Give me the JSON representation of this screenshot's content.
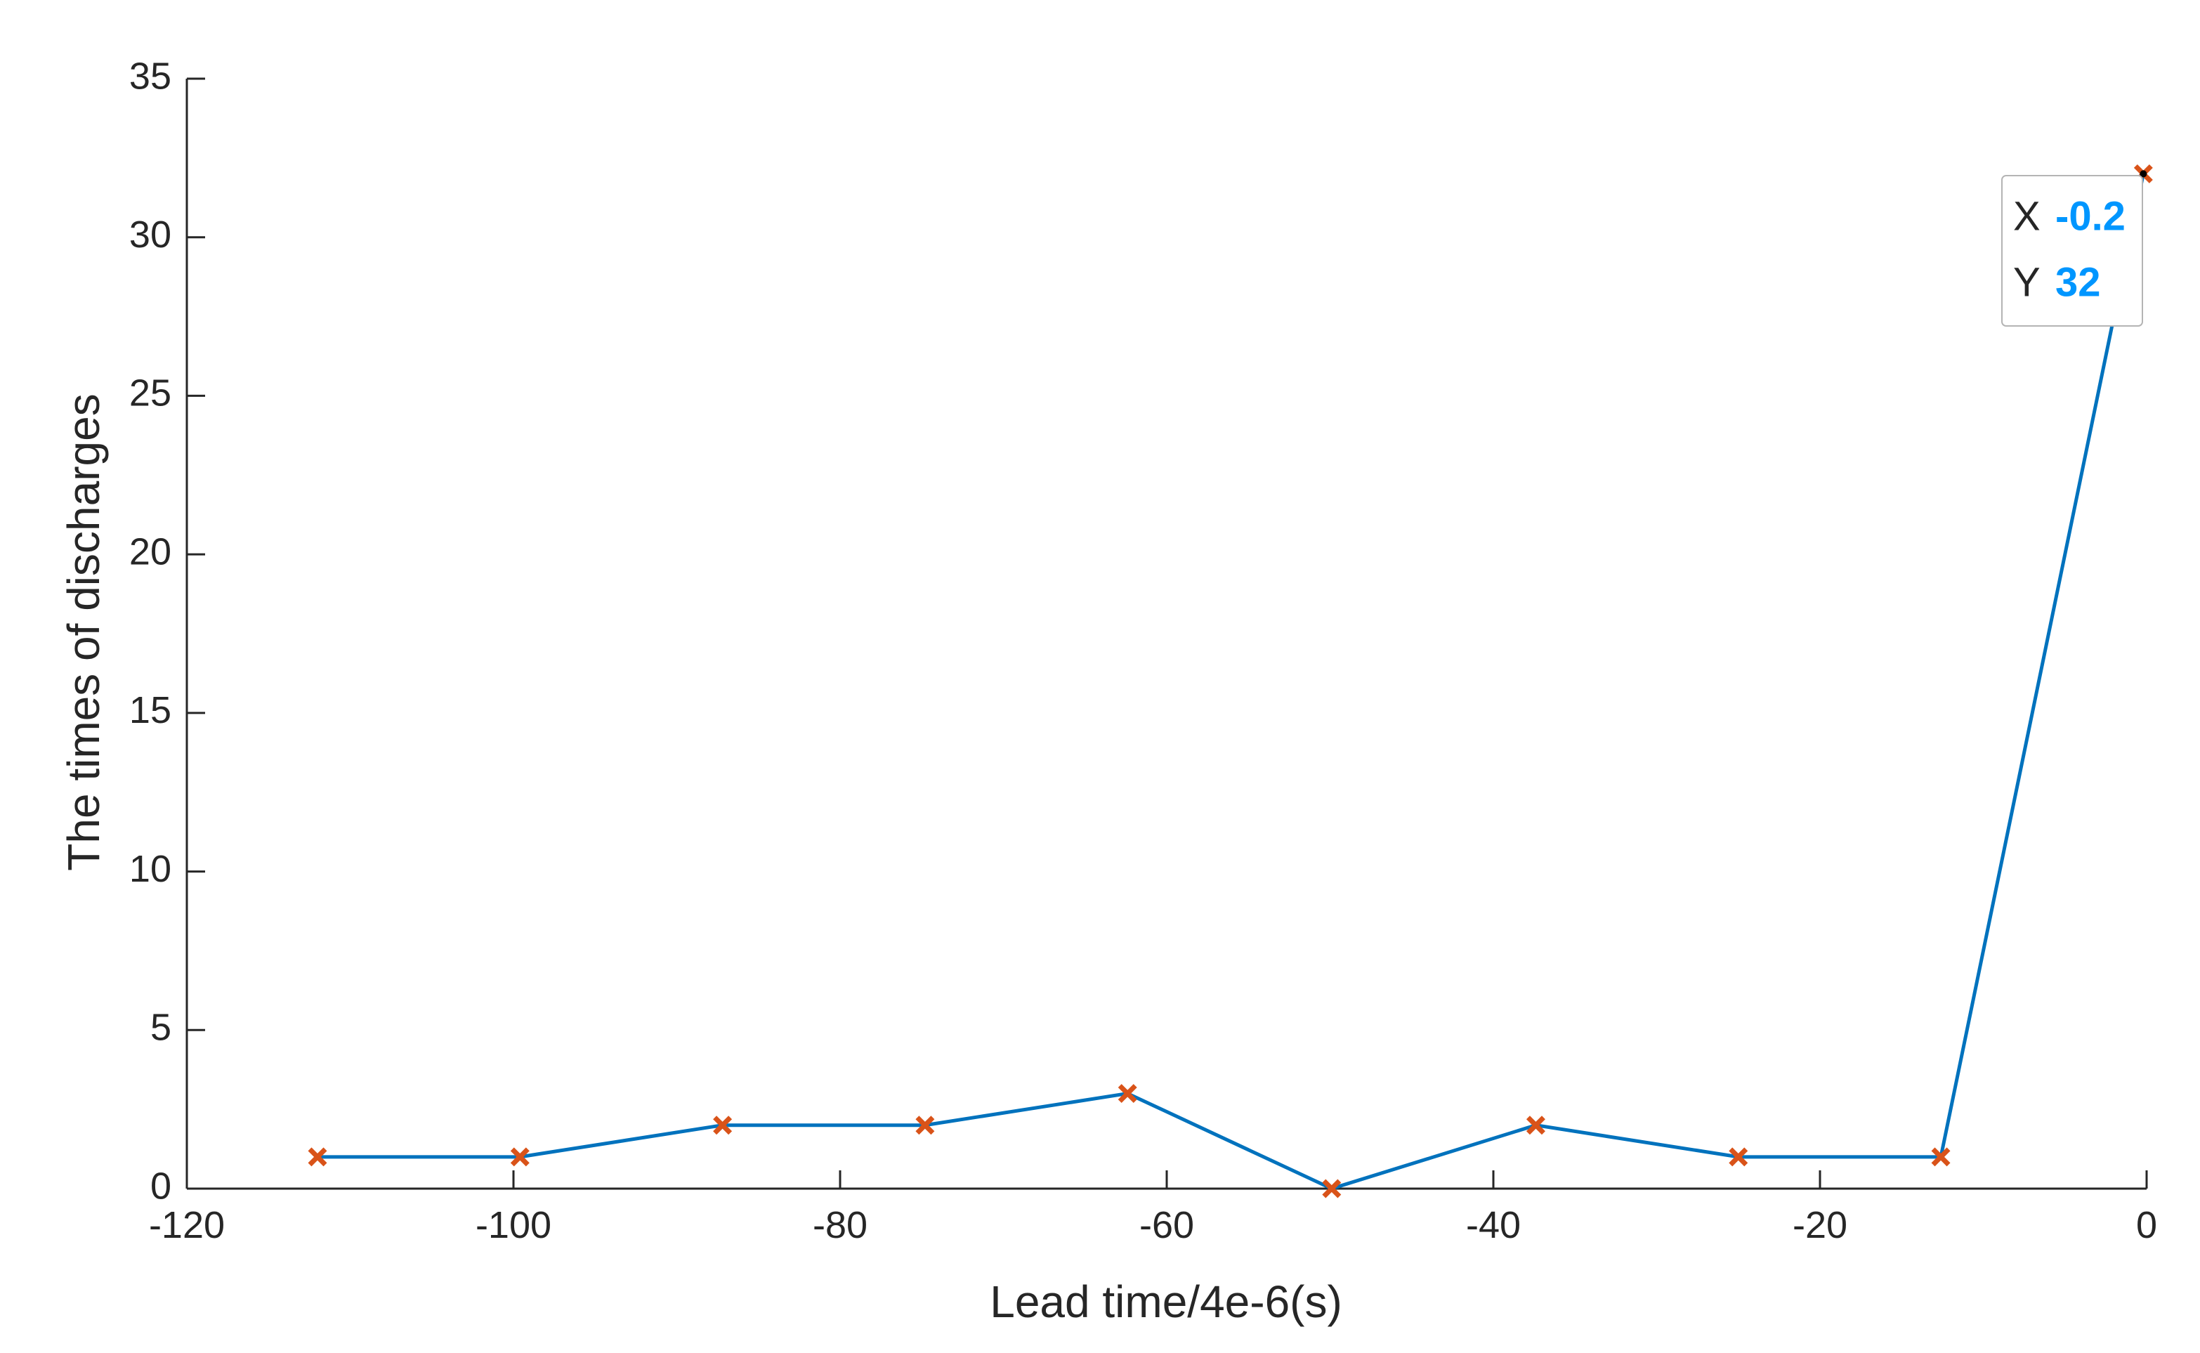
{
  "chart_data": {
    "type": "line",
    "x_label": "Lead time/4e-6(s)",
    "y_label": "The times of discharges",
    "x": [
      -112,
      -99.6,
      -87.2,
      -74.8,
      -62.4,
      -49.9,
      -37.4,
      -25,
      -12.6,
      -0.2
    ],
    "values": [
      1,
      1,
      2,
      2,
      3,
      0,
      2,
      1,
      1,
      32
    ],
    "color": "#0072BD",
    "marker_color": "#D95319",
    "xlim": [
      -120,
      0
    ],
    "xticks": [
      -120,
      -100,
      -80,
      -60,
      -40,
      -20,
      0
    ],
    "ylim": [
      0,
      35
    ],
    "yticks": [
      0,
      5,
      10,
      15,
      20,
      25,
      30,
      35
    ],
    "grid": false,
    "datatip": {
      "x_label": "X",
      "y_label": "Y",
      "value_color": "#0096FF"
    }
  }
}
